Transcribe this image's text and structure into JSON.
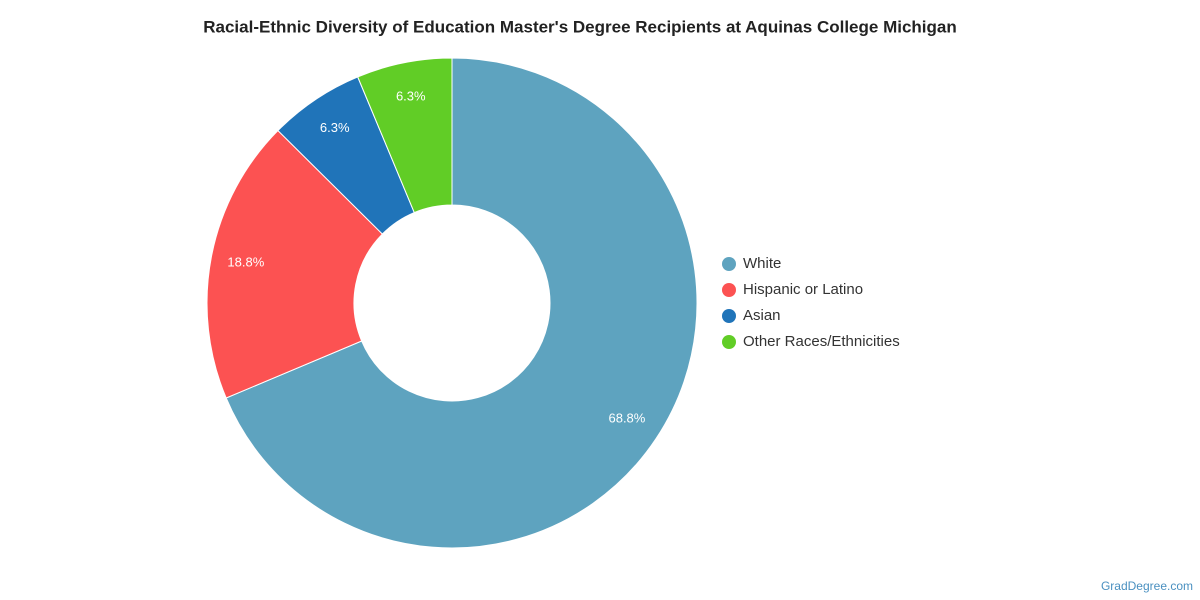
{
  "chart_data": {
    "type": "pie",
    "title": "Racial-Ethnic Diversity of Education Master's Degree Recipients at Aquinas College Michigan",
    "categories": [
      "White",
      "Hispanic or Latino",
      "Asian",
      "Other Races/Ethnicities"
    ],
    "values": [
      68.8,
      18.8,
      6.3,
      6.3
    ],
    "value_labels": [
      "68.8%",
      "18.8%",
      "6.3%",
      "6.3%"
    ],
    "colors": [
      "#5ea3bf",
      "#fc5252",
      "#2074b9",
      "#61cd26"
    ],
    "legend": "right",
    "credit": "GradDegree.com"
  }
}
